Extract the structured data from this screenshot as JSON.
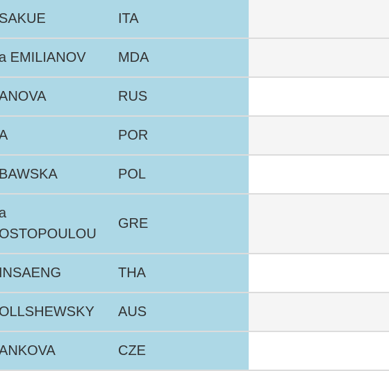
{
  "table": {
    "rows": [
      {
        "name": [
          "SAKUE"
        ],
        "country": "ITA"
      },
      {
        "name": [
          "a EMILIANOV"
        ],
        "country": "MDA"
      },
      {
        "name": [
          "ANOVA"
        ],
        "country": "RUS"
      },
      {
        "name": [
          "A"
        ],
        "country": "POR"
      },
      {
        "name": [
          "BAWSKA"
        ],
        "country": "POL"
      },
      {
        "name": [
          "a",
          "OSTOPOULOU"
        ],
        "country": "GRE"
      },
      {
        "name": [
          "INSAENG"
        ],
        "country": "THA"
      },
      {
        "name": [
          "OLLSHEWSKY"
        ],
        "country": "AUS"
      },
      {
        "name": [
          "ANKOVA"
        ],
        "country": "CZE"
      }
    ]
  }
}
